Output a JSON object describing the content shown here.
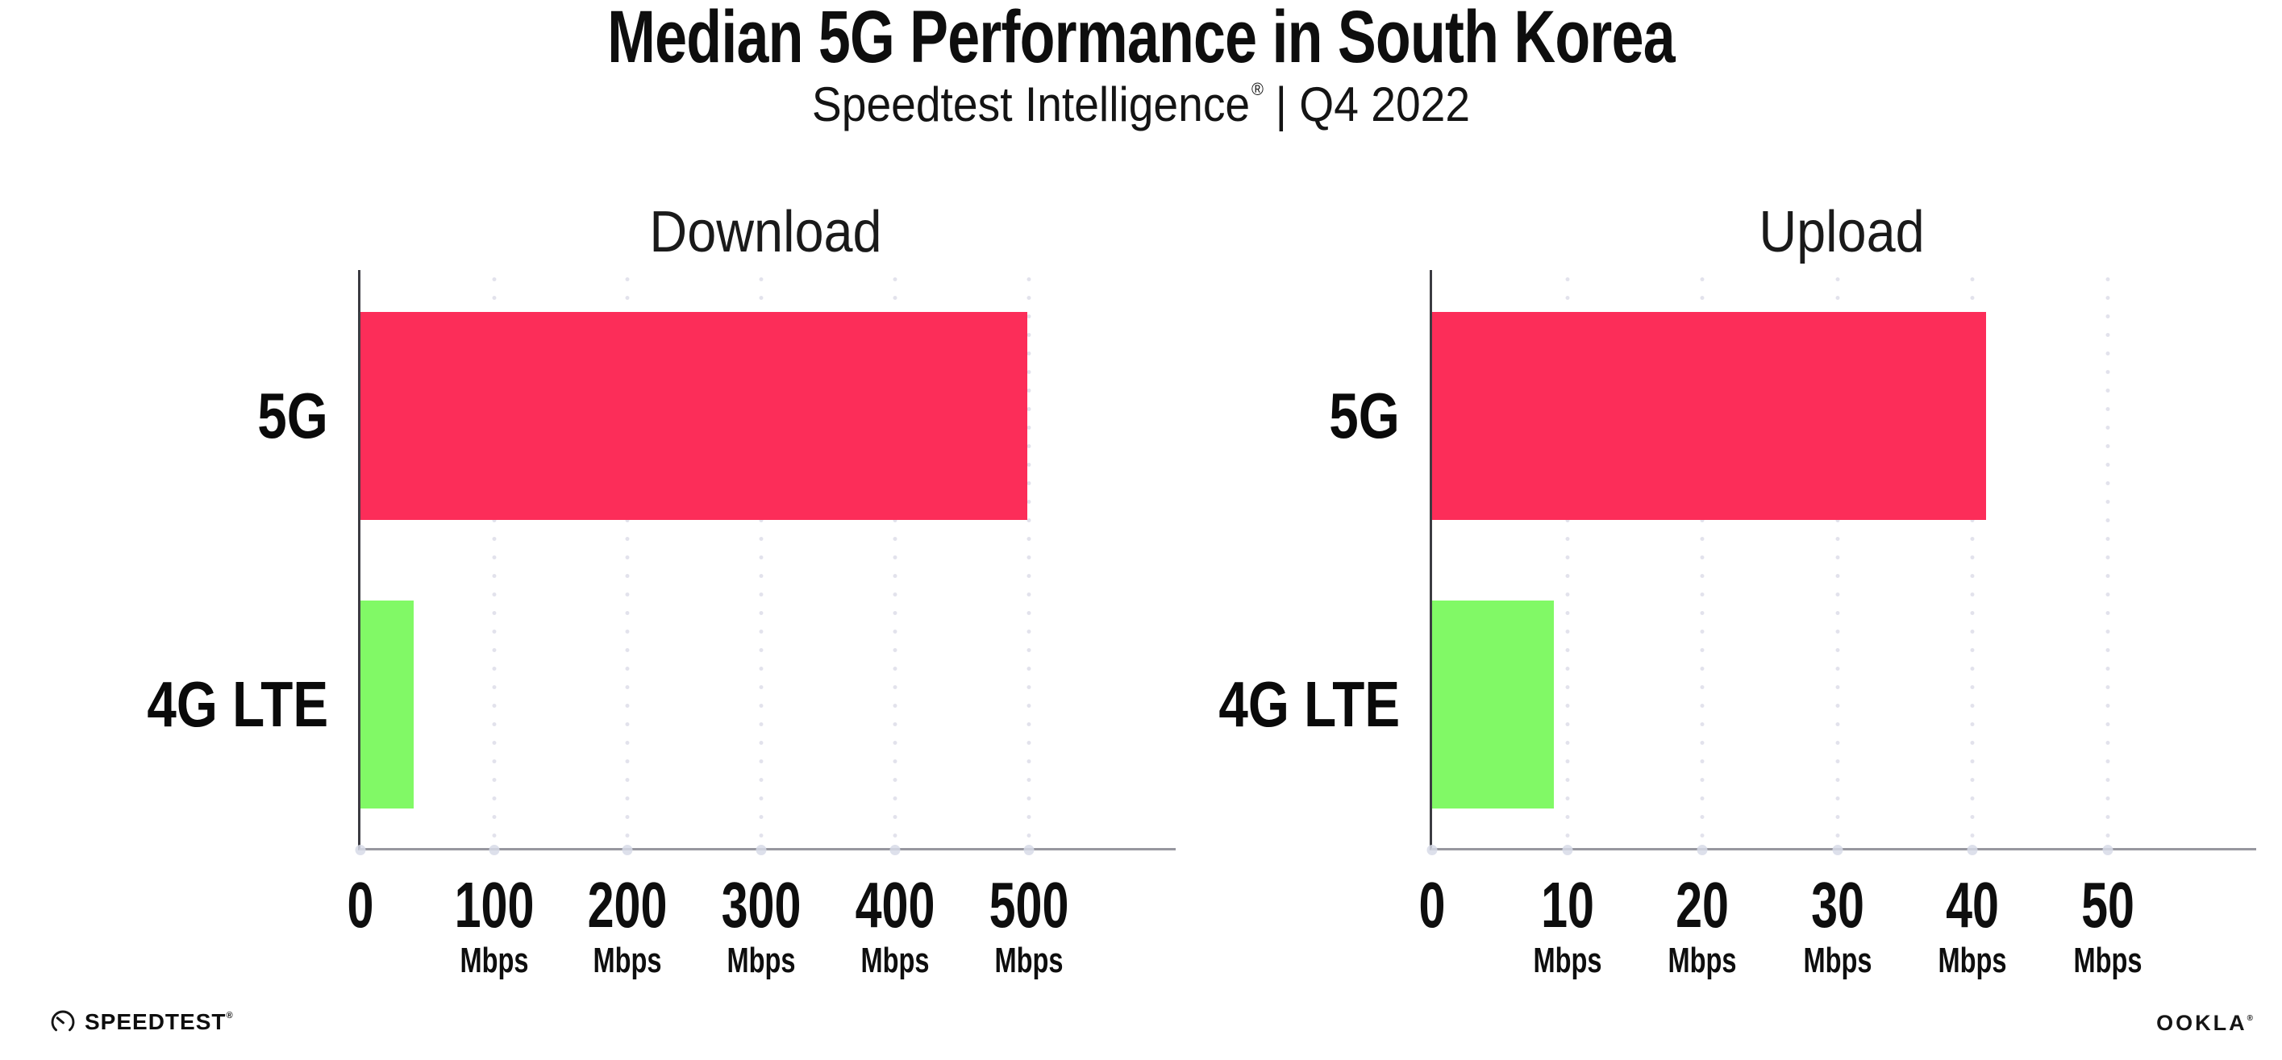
{
  "header": {
    "title": "Median 5G Performance in South Korea",
    "subtitle_brand": "Speedtest Intelligence",
    "subtitle_reg": "®",
    "subtitle_rest": "| Q4 2022"
  },
  "chart_data": [
    {
      "type": "bar",
      "orientation": "horizontal",
      "title": "Download",
      "categories": [
        "5G",
        "4G LTE"
      ],
      "values": [
        499,
        40
      ],
      "unit": "Mbps",
      "bar_colors": [
        "#FC2D59",
        "#81F966"
      ],
      "xlim": [
        0,
        610
      ],
      "ticks": [
        {
          "value": 0,
          "label": "0",
          "unit": ""
        },
        {
          "value": 100,
          "label": "100",
          "unit": "Mbps"
        },
        {
          "value": 200,
          "label": "200",
          "unit": "Mbps"
        },
        {
          "value": 300,
          "label": "300",
          "unit": "Mbps"
        },
        {
          "value": 400,
          "label": "400",
          "unit": "Mbps"
        },
        {
          "value": 500,
          "label": "500",
          "unit": "Mbps"
        }
      ],
      "grid": "dotted-vertical",
      "legend": "none"
    },
    {
      "type": "bar",
      "orientation": "horizontal",
      "title": "Upload",
      "categories": [
        "5G",
        "4G LTE"
      ],
      "values": [
        41,
        9
      ],
      "unit": "Mbps",
      "bar_colors": [
        "#FC2D59",
        "#81F966"
      ],
      "xlim": [
        0,
        61
      ],
      "ticks": [
        {
          "value": 0,
          "label": "0",
          "unit": ""
        },
        {
          "value": 10,
          "label": "10",
          "unit": "Mbps"
        },
        {
          "value": 20,
          "label": "20",
          "unit": "Mbps"
        },
        {
          "value": 30,
          "label": "30",
          "unit": "Mbps"
        },
        {
          "value": 40,
          "label": "40",
          "unit": "Mbps"
        },
        {
          "value": 50,
          "label": "50",
          "unit": "Mbps"
        }
      ],
      "grid": "dotted-vertical",
      "legend": "none"
    }
  ],
  "footer": {
    "speedtest_text": "SPEEDTEST",
    "speedtest_reg": "®",
    "ookla_text": "OOKLA",
    "ookla_reg": "®"
  },
  "colors": {
    "bar_5g": "#FC2D59",
    "bar_4g": "#81F966",
    "axis_left": "#3C3C42",
    "axis_bottom": "#97979F",
    "gridline_dot": "#E2E2EC",
    "text": "#0E0E0E",
    "background": "#FFFFFF"
  }
}
